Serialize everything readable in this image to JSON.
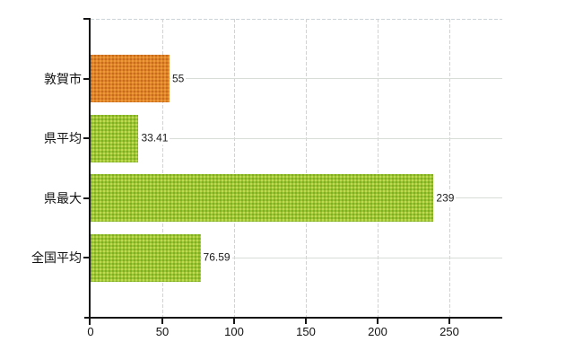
{
  "chart_data": {
    "type": "bar",
    "orientation": "horizontal",
    "title": "",
    "categories": [
      "敦賀市",
      "県平均",
      "県最大",
      "全国平均"
    ],
    "values": [
      55,
      33.41,
      239,
      76.59
    ],
    "value_labels": [
      "55",
      "33.41",
      "239",
      "76.59"
    ],
    "bar_colors": [
      "orange",
      "green",
      "green",
      "green"
    ],
    "x_ticks": [
      0,
      50,
      100,
      150,
      200,
      250
    ],
    "x_tick_labels": [
      "0",
      "50",
      "100",
      "150",
      "200",
      "250"
    ],
    "xlim": [
      0,
      287
    ],
    "grid": {
      "vertical": "dashed",
      "horizontal": "solid"
    },
    "legend": null,
    "colors": {
      "highlight_bar": "#e08429",
      "default_bar": "#9cc530",
      "axis": "#151515",
      "gridline_dashed": "#cbd4d8",
      "gridline_solid": "#d8ddd8",
      "label_text": "#1b1b1b"
    }
  }
}
